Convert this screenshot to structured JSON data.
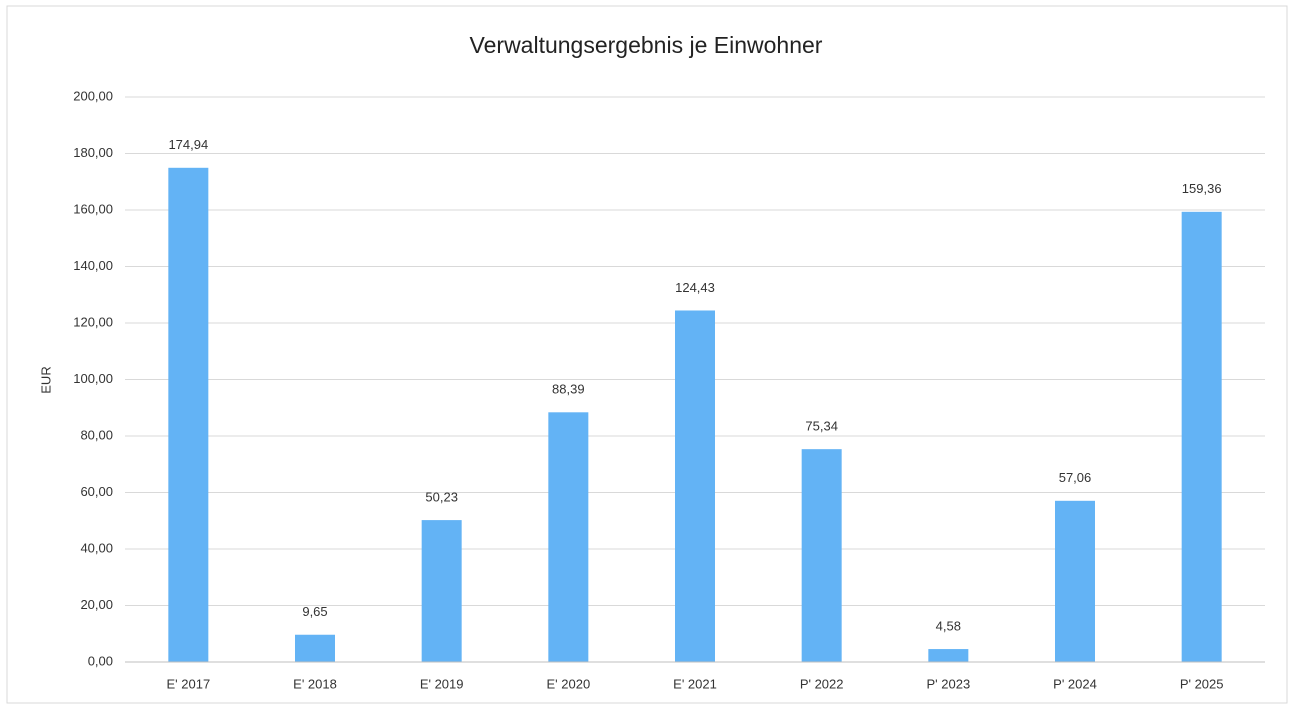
{
  "chart_data": {
    "type": "bar",
    "title": "Verwaltungsergebnis je Einwohner",
    "y_label": "EUR",
    "categories": [
      "E' 2017",
      "E' 2018",
      "E' 2019",
      "E' 2020",
      "E' 2021",
      "P' 2022",
      "P' 2023",
      "P' 2024",
      "P' 2025"
    ],
    "values": [
      174.94,
      9.65,
      50.23,
      88.39,
      124.43,
      75.34,
      4.58,
      57.06,
      159.36
    ],
    "value_labels": [
      "174,94",
      "9,65",
      "50,23",
      "88,39",
      "124,43",
      "75,34",
      "4,58",
      "57,06",
      "159,36"
    ],
    "color": "#63b3f5",
    "ylim": [
      0,
      200
    ],
    "yticks": [
      {
        "value": 0,
        "label": "0,00"
      },
      {
        "value": 20,
        "label": "20,00"
      },
      {
        "value": 40,
        "label": "40,00"
      },
      {
        "value": 60,
        "label": "60,00"
      },
      {
        "value": 80,
        "label": "80,00"
      },
      {
        "value": 100,
        "label": "100,00"
      },
      {
        "value": 120,
        "label": "120,00"
      },
      {
        "value": 140,
        "label": "140,00"
      },
      {
        "value": 160,
        "label": "160,00"
      },
      {
        "value": 180,
        "label": "180,00"
      },
      {
        "value": 200,
        "label": "200,00"
      }
    ],
    "grid": true
  }
}
